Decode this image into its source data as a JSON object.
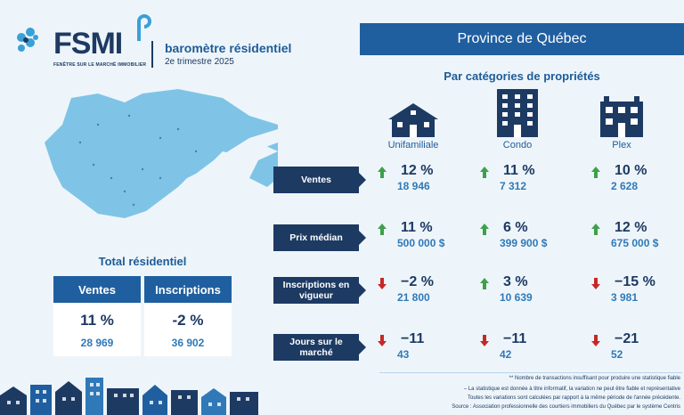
{
  "header": {
    "logo_text": "FSMI",
    "logo_subtitle": "FENÊTRE SUR LE MARCHÉ IMMOBILIER",
    "title": "baromètre résidentiel",
    "quarter": "2e trimestre 2025"
  },
  "region": "Province de Québec",
  "categories_title": "Par catégories de propriétés",
  "categories": [
    {
      "label": "Unifamiliale",
      "icon": "house-icon"
    },
    {
      "label": "Condo",
      "icon": "condo-building-icon"
    },
    {
      "label": "Plex",
      "icon": "plex-building-icon"
    }
  ],
  "metrics": [
    {
      "label": "Ventes",
      "cells": [
        {
          "dir": "up",
          "pct": "12 %",
          "value": "18 946"
        },
        {
          "dir": "up",
          "pct": "11 %",
          "value": "7 312"
        },
        {
          "dir": "up",
          "pct": "10 %",
          "value": "2 628"
        }
      ]
    },
    {
      "label": "Prix médian",
      "cells": [
        {
          "dir": "up",
          "pct": "11 %",
          "value": "500 000 $"
        },
        {
          "dir": "up",
          "pct": "6 %",
          "value": "399 900 $"
        },
        {
          "dir": "up",
          "pct": "12 %",
          "value": "675 000 $"
        }
      ]
    },
    {
      "label": "Inscriptions en vigueur",
      "cells": [
        {
          "dir": "down",
          "pct": "−2 %",
          "value": "21 800"
        },
        {
          "dir": "up",
          "pct": "3 %",
          "value": "10 639"
        },
        {
          "dir": "down",
          "pct": "−15 %",
          "value": "3 981"
        }
      ]
    },
    {
      "label": "Jours sur le marché",
      "cells": [
        {
          "dir": "down",
          "pct": "−11",
          "value": "43"
        },
        {
          "dir": "down",
          "pct": "−11",
          "value": "42"
        },
        {
          "dir": "down",
          "pct": "−21",
          "value": "52"
        }
      ]
    }
  ],
  "total": {
    "title": "Total résidentiel",
    "ventes": {
      "label": "Ventes",
      "pct": "11 %",
      "value": "28 969"
    },
    "inscriptions": {
      "label": "Inscriptions",
      "pct": "-2 %",
      "value": "36 902"
    }
  },
  "notes": [
    "** Nombre de transactions insuffisant pour produire une statistique fiable",
    "– La statistique est donnée à titre informatif, la variation ne peut être fiable et représentative",
    "Toutes les variations sont calculées par rapport à la même période de l'année précédente.",
    "Source : Association professionnelle des courtiers immobiliers du Québec par le système Centris"
  ],
  "colors": {
    "up": "#3da14a",
    "down": "#c62828",
    "navy": "#1d3a63",
    "blue": "#1f5fa0",
    "accent": "#2f79b8"
  }
}
